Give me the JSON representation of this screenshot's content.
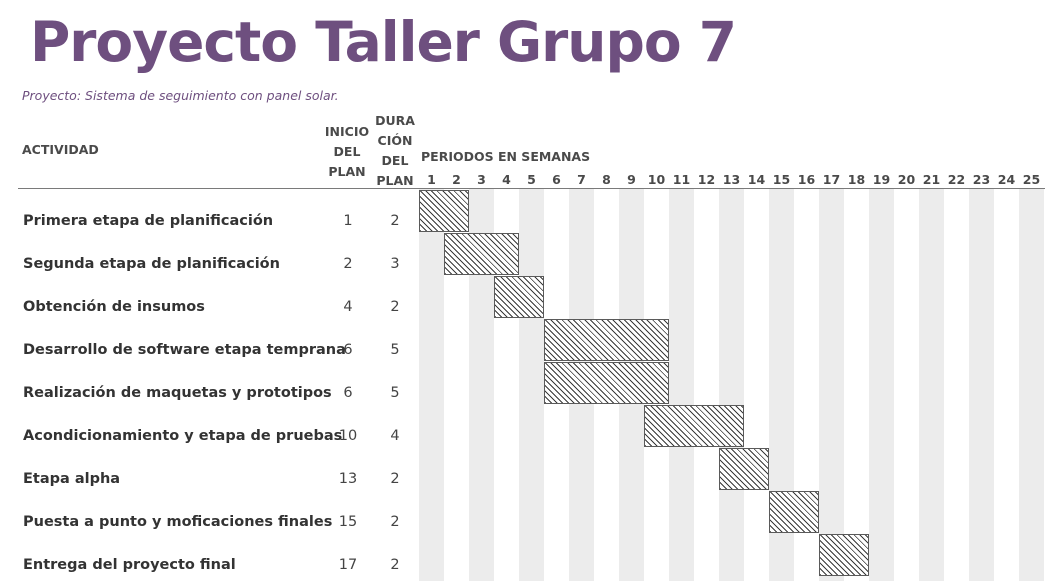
{
  "title": "Proyecto Taller Grupo 7",
  "subtitle": "Proyecto: Sistema de seguimiento con panel solar.",
  "headers": {
    "activity": "ACTIVIDAD",
    "start_line1": "INICIO",
    "start_line2": "DEL",
    "start_line3": "PLAN",
    "duration_line1": "DURA",
    "duration_line2": "CIÓN",
    "duration_line3": "DEL",
    "duration_line4": "PLAN",
    "periods": "PERIODOS EN SEMANAS"
  },
  "weeks": [
    "1",
    "2",
    "3",
    "4",
    "5",
    "6",
    "7",
    "8",
    "9",
    "10",
    "11",
    "12",
    "13",
    "14",
    "15",
    "16",
    "17",
    "18",
    "19",
    "20",
    "21",
    "22",
    "23",
    "24",
    "25"
  ],
  "activities": [
    {
      "name": "Primera etapa de planificación",
      "start": 1,
      "duration": 2
    },
    {
      "name": "Segunda etapa de planificación",
      "start": 2,
      "duration": 3
    },
    {
      "name": "Obtención de insumos",
      "start": 4,
      "duration": 2
    },
    {
      "name": "Desarrollo de software etapa temprana",
      "start": 6,
      "duration": 5
    },
    {
      "name": "Realización de maquetas y prototipos",
      "start": 6,
      "duration": 5
    },
    {
      "name": "Acondicionamiento y etapa de pruebas",
      "start": 10,
      "duration": 4
    },
    {
      "name": "Etapa alpha",
      "start": 13,
      "duration": 2
    },
    {
      "name": "Puesta a punto y moficaciones finales",
      "start": 15,
      "duration": 2
    },
    {
      "name": "Entrega del proyecto final",
      "start": 17,
      "duration": 2
    }
  ],
  "colors": {
    "title": "#6e4f7f",
    "shaded_column": "#ececec",
    "bar_hatch": "#3a3a3a",
    "bar_border": "#5a5a5a"
  }
}
